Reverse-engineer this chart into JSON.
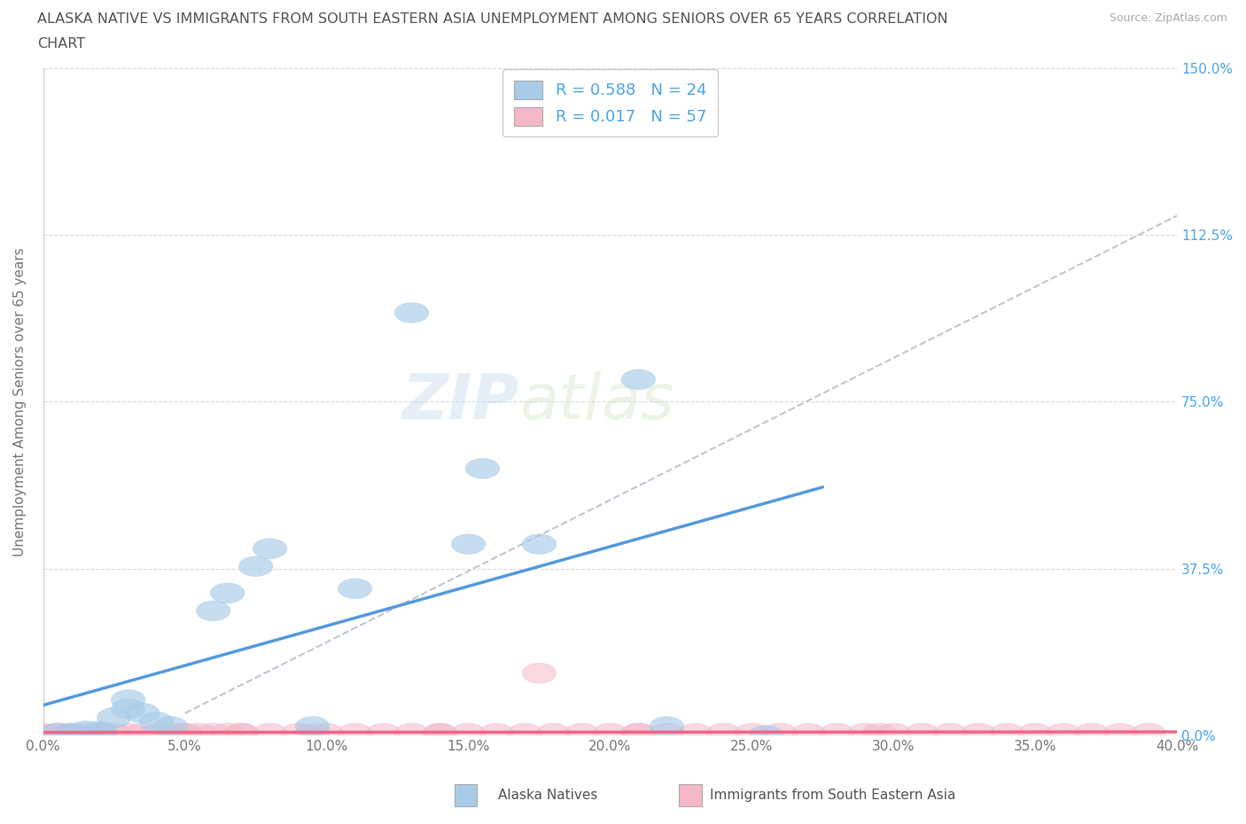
{
  "title_line1": "ALASKA NATIVE VS IMMIGRANTS FROM SOUTH EASTERN ASIA UNEMPLOYMENT AMONG SENIORS OVER 65 YEARS CORRELATION",
  "title_line2": "CHART",
  "source": "Source: ZipAtlas.com",
  "ylabel": "Unemployment Among Seniors over 65 years",
  "xmin": 0.0,
  "xmax": 0.4,
  "ymin": 0.0,
  "ymax": 1.5,
  "yticks": [
    0.0,
    0.375,
    0.75,
    1.125,
    1.5
  ],
  "ytick_labels": [
    "0.0%",
    "37.5%",
    "75.0%",
    "112.5%",
    "150.0%"
  ],
  "xticks": [
    0.0,
    0.05,
    0.1,
    0.15,
    0.2,
    0.25,
    0.3,
    0.35,
    0.4
  ],
  "xtick_labels": [
    "0.0%",
    "5.0%",
    "10.0%",
    "15.0%",
    "20.0%",
    "25.0%",
    "30.0%",
    "35.0%",
    "40.0%"
  ],
  "alaska_color": "#a8cce8",
  "immigrant_color": "#f5b8c8",
  "alaska_line_color": "#5599dd",
  "immigrant_line_color": "#ee6688",
  "dashed_line_color": "#aabbcc",
  "R_alaska": 0.588,
  "N_alaska": 24,
  "R_immigrant": 0.017,
  "N_immigrant": 57,
  "legend_label_alaska": "Alaska Natives",
  "legend_label_immigrant": "Immigrants from South Eastern Asia",
  "watermark_zip": "ZIP",
  "watermark_atlas": "atlas",
  "background_color": "#ffffff",
  "grid_color": "#cccccc",
  "alaska_x": [
    0.005,
    0.01,
    0.015,
    0.02,
    0.02,
    0.025,
    0.03,
    0.03,
    0.035,
    0.04,
    0.045,
    0.06,
    0.065,
    0.075,
    0.08,
    0.095,
    0.11,
    0.13,
    0.155,
    0.175,
    0.21,
    0.22,
    0.255,
    0.15
  ],
  "alaska_y": [
    0.005,
    0.005,
    0.01,
    0.005,
    0.01,
    0.04,
    0.06,
    0.08,
    0.05,
    0.03,
    0.02,
    0.28,
    0.32,
    0.38,
    0.42,
    0.02,
    0.33,
    0.95,
    0.6,
    0.43,
    0.8,
    0.02,
    0.0,
    0.43
  ],
  "immigrant_x": [
    0.0,
    0.005,
    0.01,
    0.01,
    0.015,
    0.02,
    0.02,
    0.025,
    0.03,
    0.035,
    0.04,
    0.045,
    0.05,
    0.055,
    0.06,
    0.065,
    0.07,
    0.08,
    0.09,
    0.1,
    0.11,
    0.12,
    0.13,
    0.14,
    0.15,
    0.16,
    0.17,
    0.18,
    0.19,
    0.2,
    0.21,
    0.22,
    0.23,
    0.24,
    0.25,
    0.26,
    0.27,
    0.28,
    0.29,
    0.3,
    0.31,
    0.32,
    0.33,
    0.34,
    0.35,
    0.36,
    0.37,
    0.38,
    0.39,
    0.005,
    0.05,
    0.07,
    0.095,
    0.14,
    0.21,
    0.295,
    0.175
  ],
  "immigrant_y": [
    0.005,
    0.005,
    0.005,
    0.005,
    0.005,
    0.005,
    0.005,
    0.005,
    0.005,
    0.005,
    0.005,
    0.005,
    0.005,
    0.005,
    0.005,
    0.005,
    0.005,
    0.005,
    0.005,
    0.005,
    0.005,
    0.005,
    0.005,
    0.005,
    0.005,
    0.005,
    0.005,
    0.005,
    0.005,
    0.005,
    0.005,
    0.005,
    0.005,
    0.005,
    0.005,
    0.005,
    0.005,
    0.005,
    0.005,
    0.005,
    0.005,
    0.005,
    0.005,
    0.005,
    0.005,
    0.005,
    0.005,
    0.005,
    0.005,
    0.005,
    0.005,
    0.005,
    0.005,
    0.005,
    0.005,
    0.005,
    0.14
  ]
}
